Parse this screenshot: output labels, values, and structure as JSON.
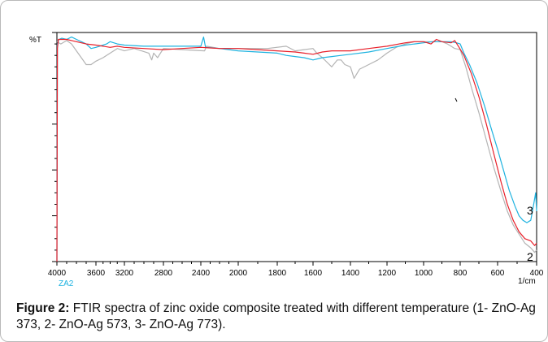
{
  "chart_data": {
    "type": "line",
    "ylabel": "%T",
    "xlabel": "1/cm",
    "sample_label": "ZA2",
    "xlim": [
      4000,
      400
    ],
    "x_ticks": [
      4000,
      3600,
      3200,
      2800,
      2400,
      2000,
      1800,
      1600,
      1400,
      1200,
      1000,
      800,
      600,
      400
    ],
    "x_tick_labels": [
      "4000",
      "3600",
      "3200",
      "2800",
      "2400",
      "2000",
      "1800",
      "1600",
      "1400",
      "1200",
      "1000",
      "800",
      "600",
      "400"
    ],
    "ylim": [
      0,
      100
    ],
    "series": [
      {
        "name": "1",
        "color": "#e8202a",
        "points": [
          [
            4000,
            0
          ],
          [
            3995,
            93
          ],
          [
            3985,
            97
          ],
          [
            3950,
            97
          ],
          [
            3900,
            97
          ],
          [
            3850,
            96.5
          ],
          [
            3800,
            96
          ],
          [
            3700,
            95
          ],
          [
            3600,
            94.5
          ],
          [
            3500,
            94
          ],
          [
            3400,
            93.5
          ],
          [
            3300,
            94
          ],
          [
            3200,
            93.5
          ],
          [
            3000,
            93
          ],
          [
            2800,
            92.5
          ],
          [
            2600,
            93
          ],
          [
            2400,
            93.5
          ],
          [
            2200,
            93
          ],
          [
            2000,
            93
          ],
          [
            1900,
            92.5
          ],
          [
            1800,
            92
          ],
          [
            1700,
            91.5
          ],
          [
            1650,
            91
          ],
          [
            1600,
            90.5
          ],
          [
            1550,
            91.5
          ],
          [
            1500,
            92
          ],
          [
            1400,
            92
          ],
          [
            1300,
            93
          ],
          [
            1200,
            94
          ],
          [
            1100,
            95.5
          ],
          [
            1050,
            96
          ],
          [
            1000,
            96
          ],
          [
            960,
            95
          ],
          [
            930,
            97
          ],
          [
            900,
            96
          ],
          [
            850,
            95.5
          ],
          [
            830,
            96.5
          ],
          [
            810,
            94
          ],
          [
            780,
            90
          ],
          [
            740,
            82
          ],
          [
            700,
            72
          ],
          [
            660,
            60
          ],
          [
            620,
            47
          ],
          [
            580,
            34
          ],
          [
            550,
            25
          ],
          [
            520,
            18
          ],
          [
            490,
            13
          ],
          [
            460,
            10
          ],
          [
            430,
            9
          ],
          [
            410,
            7
          ],
          [
            400,
            8
          ]
        ]
      },
      {
        "name": "2",
        "color": "#b4b4b4",
        "points": [
          [
            4000,
            96
          ],
          [
            3960,
            95
          ],
          [
            3900,
            96.5
          ],
          [
            3850,
            95
          ],
          [
            3800,
            92
          ],
          [
            3750,
            89
          ],
          [
            3700,
            86
          ],
          [
            3650,
            86
          ],
          [
            3600,
            87.5
          ],
          [
            3500,
            89
          ],
          [
            3400,
            91
          ],
          [
            3300,
            93
          ],
          [
            3200,
            92
          ],
          [
            3100,
            93
          ],
          [
            2950,
            91
          ],
          [
            2920,
            88
          ],
          [
            2900,
            91
          ],
          [
            2860,
            89
          ],
          [
            2800,
            93
          ],
          [
            2600,
            92.5
          ],
          [
            2360,
            92
          ],
          [
            2340,
            94
          ],
          [
            2200,
            93
          ],
          [
            2000,
            93
          ],
          [
            1850,
            93
          ],
          [
            1750,
            94
          ],
          [
            1700,
            92
          ],
          [
            1650,
            92.5
          ],
          [
            1600,
            93
          ],
          [
            1580,
            91
          ],
          [
            1550,
            89
          ],
          [
            1500,
            85
          ],
          [
            1470,
            88
          ],
          [
            1450,
            88
          ],
          [
            1430,
            86
          ],
          [
            1400,
            85
          ],
          [
            1380,
            80
          ],
          [
            1350,
            84
          ],
          [
            1300,
            86
          ],
          [
            1250,
            88
          ],
          [
            1200,
            91
          ],
          [
            1150,
            93.5
          ],
          [
            1100,
            95
          ],
          [
            1050,
            96
          ],
          [
            1000,
            96
          ],
          [
            950,
            96
          ],
          [
            900,
            96
          ],
          [
            870,
            95
          ],
          [
            850,
            94
          ],
          [
            830,
            93
          ],
          [
            800,
            92.5
          ],
          [
            770,
            85
          ],
          [
            740,
            76
          ],
          [
            700,
            65
          ],
          [
            660,
            53
          ],
          [
            620,
            41
          ],
          [
            580,
            30
          ],
          [
            550,
            22
          ],
          [
            520,
            16
          ],
          [
            490,
            12
          ],
          [
            460,
            8
          ],
          [
            430,
            6
          ],
          [
            410,
            4
          ],
          [
            400,
            5
          ]
        ]
      },
      {
        "name": "3",
        "color": "#1fb3e0",
        "points": [
          [
            4000,
            0
          ],
          [
            3995,
            95
          ],
          [
            3980,
            97
          ],
          [
            3950,
            97.5
          ],
          [
            3900,
            97
          ],
          [
            3850,
            98
          ],
          [
            3800,
            97
          ],
          [
            3700,
            95
          ],
          [
            3650,
            93
          ],
          [
            3600,
            93.5
          ],
          [
            3550,
            94
          ],
          [
            3500,
            94.5
          ],
          [
            3450,
            95
          ],
          [
            3400,
            96
          ],
          [
            3300,
            95
          ],
          [
            3200,
            94.5
          ],
          [
            3000,
            94
          ],
          [
            2800,
            94
          ],
          [
            2600,
            94
          ],
          [
            2400,
            94
          ],
          [
            2370,
            98
          ],
          [
            2350,
            93.5
          ],
          [
            2200,
            93
          ],
          [
            2100,
            92.5
          ],
          [
            2000,
            92
          ],
          [
            1900,
            91.5
          ],
          [
            1800,
            91
          ],
          [
            1750,
            90
          ],
          [
            1700,
            89.5
          ],
          [
            1650,
            89
          ],
          [
            1600,
            88
          ],
          [
            1550,
            89
          ],
          [
            1500,
            89.5
          ],
          [
            1450,
            90
          ],
          [
            1400,
            90.5
          ],
          [
            1300,
            91.5
          ],
          [
            1200,
            93
          ],
          [
            1100,
            94.5
          ],
          [
            1050,
            95
          ],
          [
            1000,
            95.5
          ],
          [
            950,
            96
          ],
          [
            900,
            96
          ],
          [
            850,
            96
          ],
          [
            820,
            95.5
          ],
          [
            800,
            95
          ],
          [
            780,
            91
          ],
          [
            750,
            86
          ],
          [
            710,
            78
          ],
          [
            670,
            68
          ],
          [
            630,
            57
          ],
          [
            600,
            49
          ],
          [
            570,
            40
          ],
          [
            540,
            31
          ],
          [
            510,
            24
          ],
          [
            490,
            20
          ],
          [
            470,
            18
          ],
          [
            450,
            17
          ],
          [
            430,
            18
          ],
          [
            415,
            25
          ],
          [
            405,
            30
          ],
          [
            400,
            22
          ]
        ]
      }
    ],
    "annotations": [
      "3",
      "2"
    ]
  },
  "caption": {
    "label": "Figure 2:",
    "text": " FTIR spectra of zinc oxide composite treated with different temperature (1- ZnO-Ag 373, 2- ZnO-Ag 573, 3- ZnO-Ag 773)."
  }
}
